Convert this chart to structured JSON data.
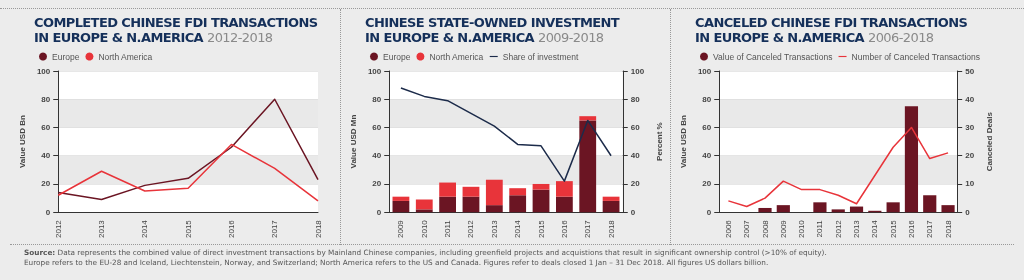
{
  "chart_data": [
    {
      "type": "line",
      "title": "COMPLETED CHINESE FDI TRANSACTIONS IN EUROPE & N.AMERICA",
      "subtitle": "2012-2018",
      "ylabel": "Value USD Bn",
      "categories": [
        "2012",
        "2013",
        "2014",
        "2015",
        "2016",
        "2017",
        "2018"
      ],
      "series": [
        {
          "name": "Europe",
          "color": "#6b1523",
          "values": [
            14,
            9,
            19,
            24,
            46,
            80,
            23
          ]
        },
        {
          "name": "North America",
          "color": "#e8343a",
          "values": [
            12,
            29,
            15,
            17,
            48,
            31,
            8
          ]
        }
      ],
      "ylim": [
        0,
        100
      ],
      "yticks": [
        0,
        20,
        40,
        60,
        80,
        100
      ],
      "grid": "y",
      "legend": "top left",
      "marker": "none",
      "annotations": [
        "Source: Data represents the combined value of direct investment transactions by Mainland Chinese companies, including greenfield projects and acquistions that result in significant ownership control (>10% of equity).",
        "Europe refers to the EU-28 and Iceland, Liechtenstein, Norway, and Switzerland; North America refers to the US and Canada. Figures refer to deals closed 1 Jan – 31 Dec 2018. All figures US dollars billion."
      ]
    },
    {
      "type": "bar",
      "title": "CHINESE STATE-OWNED INVESTMENT IN EUROPE & N.AMERICA",
      "subtitle": "2009-2018",
      "ylabel": "Value USD Mn",
      "y2label": "Percent %",
      "categories": [
        "2009",
        "2010",
        "2011",
        "2012",
        "2013",
        "2014",
        "2015",
        "2016",
        "2017",
        "2018"
      ],
      "stacked": true,
      "series": [
        {
          "name": "Europe",
          "color": "#6b1523",
          "values": [
            8,
            2,
            11,
            11,
            5,
            12,
            16,
            11,
            65,
            8
          ]
        },
        {
          "name": "North America",
          "color": "#e8343a",
          "values": [
            3,
            7,
            10,
            7,
            18,
            5,
            4,
            11,
            3,
            3
          ]
        },
        {
          "name": "Share of investment",
          "type": "line",
          "axis": "y2",
          "color": "#1c2b4a",
          "values": [
            88,
            82,
            79,
            70,
            61,
            48,
            47,
            22,
            65,
            40
          ]
        }
      ],
      "ylim": [
        0,
        100
      ],
      "yticks": [
        0,
        20,
        40,
        60,
        80,
        100
      ],
      "y2lim": [
        0,
        100
      ],
      "y2ticks": [
        0,
        20,
        40,
        60,
        80,
        100
      ],
      "grid": "y",
      "legend": "top left",
      "marker": "none"
    },
    {
      "type": "bar",
      "title": "CANCELED CHINESE FDI TRANSACTIONS IN EUROPE & N.AMERICA",
      "subtitle": "2006-2018",
      "ylabel": "Value USD Bn",
      "y2label": "Canceled Deals",
      "categories": [
        "2006",
        "2007",
        "2008",
        "2009",
        "2010",
        "2011",
        "2012",
        "2013",
        "2014",
        "2015",
        "2016",
        "2017",
        "2018"
      ],
      "series": [
        {
          "name": "Value of Canceled Transactions",
          "color": "#6b1523",
          "values": [
            0,
            0,
            3,
            5,
            0,
            7,
            2,
            4,
            1,
            7,
            75,
            12,
            5
          ]
        },
        {
          "name": "Number of Canceled Transactions",
          "type": "line",
          "axis": "y2",
          "color": "#e8343a",
          "values": [
            4,
            2,
            5,
            11,
            8,
            8,
            6,
            3,
            13,
            23,
            30,
            19,
            21
          ]
        }
      ],
      "ylim": [
        0,
        100
      ],
      "yticks": [
        0,
        20,
        40,
        60,
        80,
        100
      ],
      "y2lim": [
        0,
        50
      ],
      "y2ticks": [
        0,
        10,
        20,
        30,
        40,
        50
      ],
      "grid": "y",
      "legend": "top left",
      "marker": "none"
    }
  ]
}
